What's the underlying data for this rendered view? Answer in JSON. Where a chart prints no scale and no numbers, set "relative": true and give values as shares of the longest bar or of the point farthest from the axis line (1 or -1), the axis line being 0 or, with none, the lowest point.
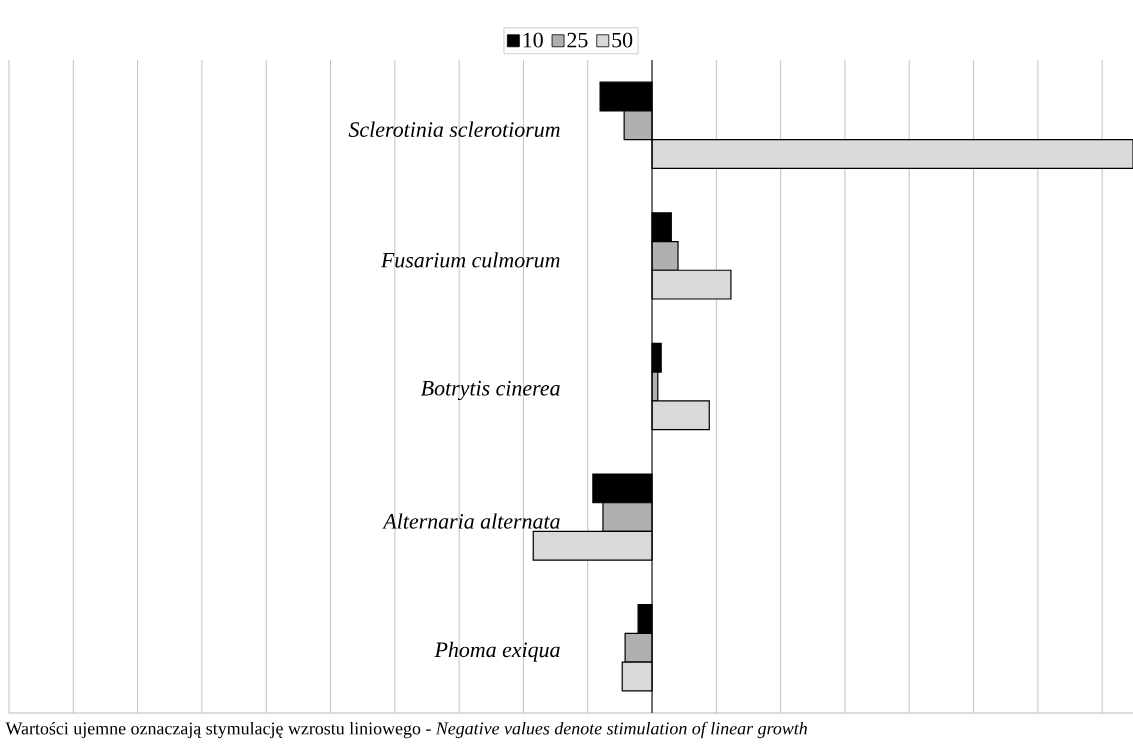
{
  "chart_data": {
    "type": "bar",
    "orientation": "horizontal",
    "relative": true,
    "categories": [
      "Sclerotinia sclerotiorum",
      "Fusarium culmorum",
      "Botrytis cinerea",
      "Alternaria alternata",
      "Phoma exiqua"
    ],
    "series": [
      {
        "name": "10",
        "color": "#000000",
        "values": [
          -0.108,
          0.04,
          0.019,
          -0.123,
          -0.029
        ]
      },
      {
        "name": "25",
        "color": "#b0b0b0",
        "values": [
          -0.058,
          0.054,
          0.012,
          -0.102,
          -0.056
        ]
      },
      {
        "name": "50",
        "color": "#d9d9d9",
        "values": [
          1,
          0.164,
          0.119,
          -0.247,
          -0.062
        ]
      }
    ],
    "grid": "x",
    "legend": "top",
    "annotations": [
      "Wartości ujemne oznaczają stymulację wzrostu liniowego - *Negative values denote stimulation of linear growth*"
    ]
  }
}
